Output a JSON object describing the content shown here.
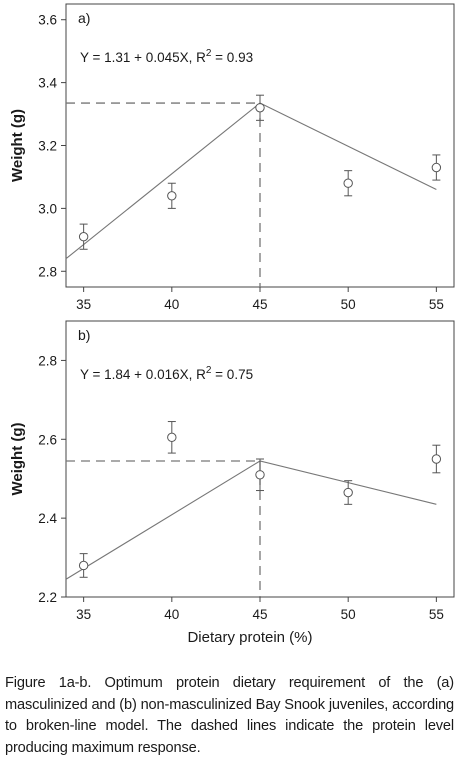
{
  "chart_data": [
    {
      "type": "scatter",
      "panel_label": "a)",
      "equation": "Y = 1.31 + 0.045X, R",
      "r2_exp": "2",
      "r2_value": " = 0.93",
      "ylabel": "Weight (g)",
      "xlim": [
        34,
        56
      ],
      "ylim": [
        2.75,
        3.65
      ],
      "xticks": [
        35,
        40,
        45,
        50,
        55
      ],
      "xtick_labels": [
        "35",
        "40",
        "45",
        "50",
        "55"
      ],
      "yticks": [
        2.8,
        3.0,
        3.2,
        3.4,
        3.6
      ],
      "ytick_labels": [
        "2.8",
        "3.0",
        "3.2",
        "3.4",
        "3.6"
      ],
      "points": [
        {
          "x": 35,
          "y": 2.91,
          "err": 0.04
        },
        {
          "x": 40,
          "y": 3.04,
          "err": 0.04
        },
        {
          "x": 45,
          "y": 3.32,
          "err": 0.04
        },
        {
          "x": 50,
          "y": 3.08,
          "err": 0.04
        },
        {
          "x": 55,
          "y": 3.13,
          "err": 0.04
        }
      ],
      "fit_line": [
        [
          34,
          2.84
        ],
        [
          45,
          3.335
        ],
        [
          55,
          3.06
        ]
      ],
      "breakpoint": {
        "x": 45,
        "y": 3.335
      }
    },
    {
      "type": "scatter",
      "panel_label": "b)",
      "equation": "Y = 1.84 + 0.016X, R",
      "r2_exp": "2",
      "r2_value": " = 0.75",
      "ylabel": "Weight (g)",
      "xlabel": "Dietary protein (%)",
      "xlim": [
        34,
        56
      ],
      "ylim": [
        2.2,
        2.9
      ],
      "xticks": [
        35,
        40,
        45,
        50,
        55
      ],
      "xtick_labels": [
        "35",
        "40",
        "45",
        "50",
        "55"
      ],
      "yticks": [
        2.2,
        2.4,
        2.6,
        2.8
      ],
      "ytick_labels": [
        "2.2",
        "2.4",
        "2.6",
        "2.8"
      ],
      "points": [
        {
          "x": 35,
          "y": 2.28,
          "err": 0.03
        },
        {
          "x": 40,
          "y": 2.605,
          "err": 0.04
        },
        {
          "x": 45,
          "y": 2.51,
          "err": 0.04
        },
        {
          "x": 50,
          "y": 2.465,
          "err": 0.03
        },
        {
          "x": 55,
          "y": 2.55,
          "err": 0.035
        }
      ],
      "fit_line": [
        [
          34,
          2.245
        ],
        [
          45,
          2.545
        ],
        [
          55,
          2.435
        ]
      ],
      "breakpoint": {
        "x": 45,
        "y": 2.545
      }
    }
  ],
  "caption": "Figure 1a-b. Optimum protein dietary requirement of the (a) masculinized and (b) non-masculinized Bay Snook juveniles, according to broken-line model. The dashed lines indicate the protein level producing maximum response."
}
